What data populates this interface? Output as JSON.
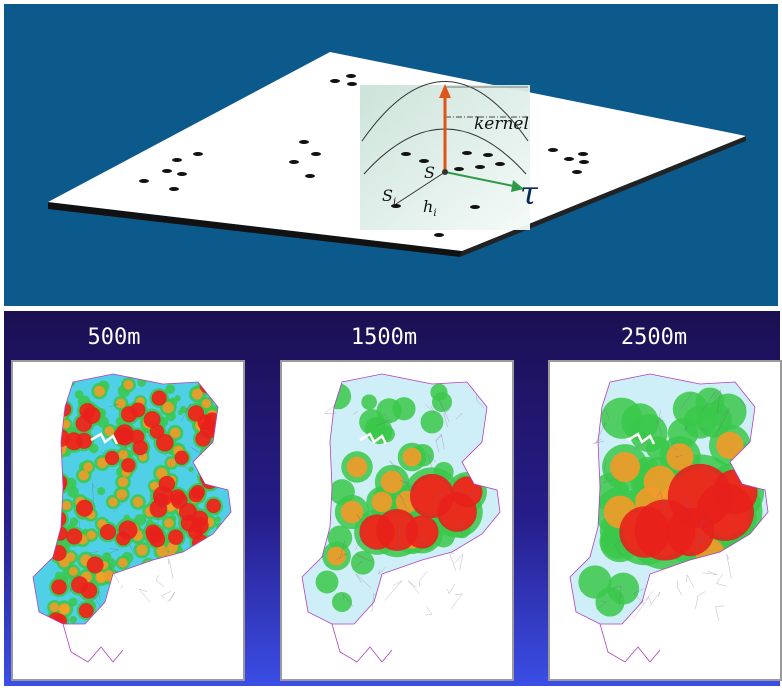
{
  "diagram": {
    "labels": {
      "kernel": "kernel",
      "s": "S",
      "s_sub": "",
      "si": "S",
      "si_sub": "i",
      "hi": "h",
      "hi_sub": "i",
      "tau": "τ"
    },
    "colors": {
      "background_blue": "#0c5a8c",
      "plane": "#ffffff",
      "points": "#111111",
      "height_arrow": "#e0541a",
      "tau_arrow": "#2e9a48"
    }
  },
  "maps": [
    {
      "title": "500m",
      "bandwidth_m": 500
    },
    {
      "title": "1500m",
      "bandwidth_m": 1500
    },
    {
      "title": "2500m",
      "bandwidth_m": 2500
    }
  ],
  "colors": {
    "panel_gradient_top": "#1b0f52",
    "panel_gradient_bottom": "#3b4ee6",
    "heat_scale": [
      "#ffffff",
      "#cfeff8",
      "#4fd0e6",
      "#39c84a",
      "#e6e632",
      "#f39a28",
      "#e8201c"
    ],
    "boundaries": "#b040c0"
  }
}
